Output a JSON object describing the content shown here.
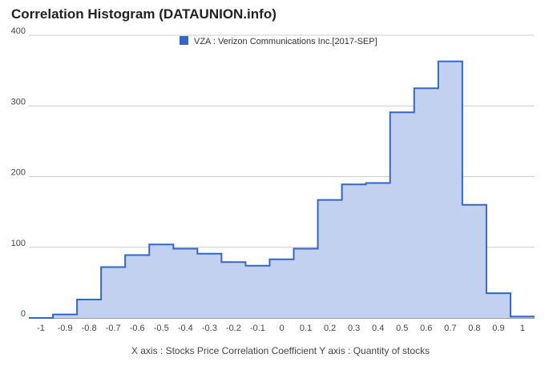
{
  "chart_data": {
    "type": "bar",
    "title": "Correlation Histogram (DATAUNION.info)",
    "xlabel": "X axis : Stocks Price Correlation Coefficient  Y axis : Quantity of stocks",
    "ylabel": "",
    "legend": {
      "position": "top",
      "entries": [
        "VZA : Verizon Communications Inc.[2017-SEP]"
      ]
    },
    "series": [
      {
        "name": "VZA : Verizon Communications Inc.[2017-SEP]",
        "bins": [
          {
            "x0": -1.05,
            "x1": -0.95,
            "value": 0
          },
          {
            "x0": -0.95,
            "x1": -0.85,
            "value": 5
          },
          {
            "x0": -0.85,
            "x1": -0.75,
            "value": 26
          },
          {
            "x0": -0.75,
            "x1": -0.65,
            "value": 72
          },
          {
            "x0": -0.65,
            "x1": -0.55,
            "value": 89
          },
          {
            "x0": -0.55,
            "x1": -0.45,
            "value": 104
          },
          {
            "x0": -0.45,
            "x1": -0.35,
            "value": 98
          },
          {
            "x0": -0.35,
            "x1": -0.25,
            "value": 91
          },
          {
            "x0": -0.25,
            "x1": -0.15,
            "value": 79
          },
          {
            "x0": -0.15,
            "x1": -0.05,
            "value": 74
          },
          {
            "x0": -0.05,
            "x1": 0.05,
            "value": 83
          },
          {
            "x0": 0.05,
            "x1": 0.15,
            "value": 98
          },
          {
            "x0": 0.15,
            "x1": 0.25,
            "value": 167
          },
          {
            "x0": 0.25,
            "x1": 0.35,
            "value": 189
          },
          {
            "x0": 0.35,
            "x1": 0.45,
            "value": 191
          },
          {
            "x0": 0.45,
            "x1": 0.55,
            "value": 291
          },
          {
            "x0": 0.55,
            "x1": 0.65,
            "value": 325
          },
          {
            "x0": 0.65,
            "x1": 0.75,
            "value": 363
          },
          {
            "x0": 0.75,
            "x1": 0.85,
            "value": 160
          },
          {
            "x0": 0.85,
            "x1": 0.95,
            "value": 35
          },
          {
            "x0": 0.95,
            "x1": 1.05,
            "value": 2
          }
        ]
      }
    ],
    "x_ticks": [
      -1,
      -0.9,
      -0.8,
      -0.7,
      -0.6,
      -0.5,
      -0.4,
      -0.3,
      -0.2,
      -0.1,
      0,
      0.1,
      0.2,
      0.3,
      0.4,
      0.5,
      0.6,
      0.7,
      0.8,
      0.9,
      1
    ],
    "x_tick_labels": [
      "-1",
      "-0.9",
      "-0.8",
      "-0.7",
      "-0.6",
      "-0.5",
      "-0.4",
      "-0.3",
      "-0.2",
      "-0.1",
      "0",
      "0.1",
      "0.2",
      "0.3",
      "0.4",
      "0.5",
      "0.6",
      "0.7",
      "0.8",
      "0.9",
      "1"
    ],
    "y_ticks": [
      0,
      100,
      200,
      300,
      400
    ],
    "y_tick_labels": [
      "0",
      "100",
      "200",
      "300",
      "400"
    ],
    "xlim": [
      -1.05,
      1.05
    ],
    "ylim": [
      0,
      400
    ],
    "grid": true,
    "colors": {
      "line": "#3366cc",
      "fill": "#c2d1f0",
      "grid": "#cccccc"
    }
  }
}
